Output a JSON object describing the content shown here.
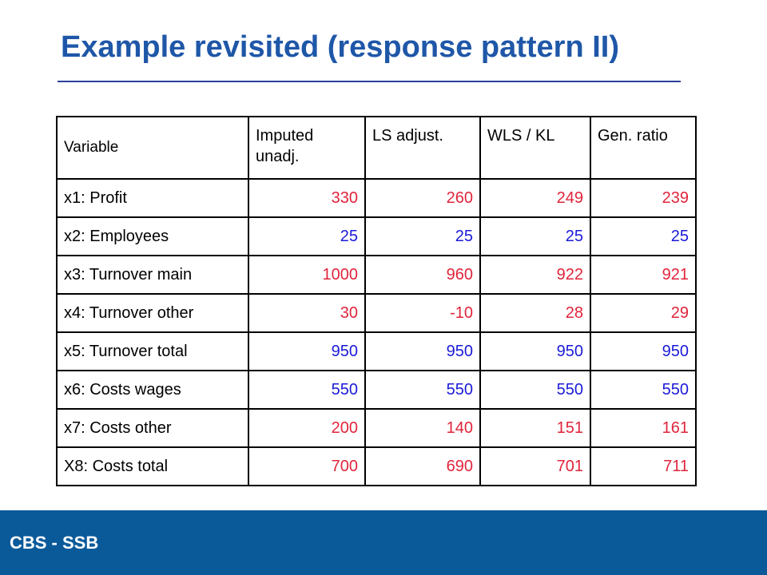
{
  "title": "Example revisited (response pattern II)",
  "footer": "CBS - SSB",
  "colors": {
    "title": "#1f57a8",
    "footer_bg": "#0a5a9a",
    "changed_value": "#e0243b",
    "unchanged_value": "#1a1ad8"
  },
  "table": {
    "headers": [
      "Variable",
      "Imputed unadj.",
      "LS adjust.",
      "WLS / KL",
      "Gen. ratio"
    ],
    "rows": [
      {
        "variable": "x1: Profit",
        "values": [
          "330",
          "260",
          "249",
          "239"
        ],
        "color": "red"
      },
      {
        "variable": "x2: Employees",
        "values": [
          "25",
          "25",
          "25",
          "25"
        ],
        "color": "blue"
      },
      {
        "variable": "x3: Turnover main",
        "values": [
          "1000",
          "960",
          "922",
          "921"
        ],
        "color": "red"
      },
      {
        "variable": "x4: Turnover other",
        "values": [
          "30",
          "-10",
          "28",
          "29"
        ],
        "color": "red"
      },
      {
        "variable": "x5: Turnover total",
        "values": [
          "950",
          "950",
          "950",
          "950"
        ],
        "color": "blue"
      },
      {
        "variable": "x6: Costs wages",
        "values": [
          "550",
          "550",
          "550",
          "550"
        ],
        "color": "blue"
      },
      {
        "variable": "x7: Costs other",
        "values": [
          "200",
          "140",
          "151",
          "161"
        ],
        "color": "red"
      },
      {
        "variable": "X8: Costs total",
        "values": [
          "700",
          "690",
          "701",
          "711"
        ],
        "color": "red"
      }
    ]
  }
}
